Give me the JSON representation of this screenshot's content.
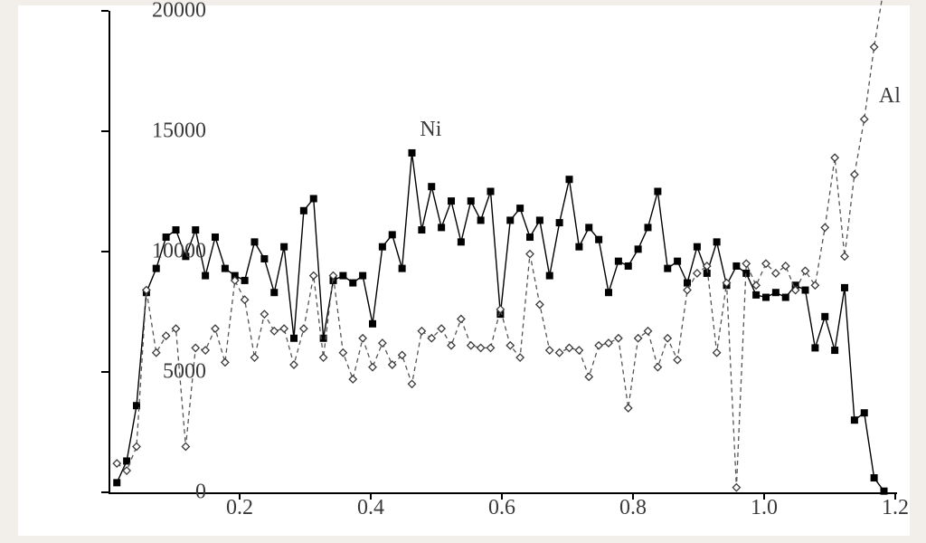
{
  "chart": {
    "type": "line",
    "background_color": "#ffffff",
    "page_background": "#f2eee9",
    "axis_color": "#000000",
    "label_color": "#3a3a3a",
    "label_fontsize": 24,
    "xlim": [
      0.0,
      1.2
    ],
    "ylim": [
      0,
      20000
    ],
    "xtick_step": 0.2,
    "ytick_step": 5000,
    "xticks": [
      "0.2",
      "0.4",
      "0.6",
      "0.8",
      "1.0",
      "1.2"
    ],
    "yticks": [
      "0",
      "5000",
      "10000",
      "15000",
      "20000"
    ],
    "x_values": [
      0.01,
      0.025,
      0.04,
      0.055,
      0.07,
      0.085,
      0.1,
      0.115,
      0.13,
      0.145,
      0.16,
      0.175,
      0.19,
      0.205,
      0.22,
      0.235,
      0.25,
      0.265,
      0.28,
      0.295,
      0.31,
      0.325,
      0.34,
      0.355,
      0.37,
      0.385,
      0.4,
      0.415,
      0.43,
      0.445,
      0.46,
      0.475,
      0.49,
      0.505,
      0.52,
      0.535,
      0.55,
      0.565,
      0.58,
      0.595,
      0.61,
      0.625,
      0.64,
      0.655,
      0.67,
      0.685,
      0.7,
      0.715,
      0.73,
      0.745,
      0.76,
      0.775,
      0.79,
      0.805,
      0.82,
      0.835,
      0.85,
      0.865,
      0.88,
      0.895,
      0.91,
      0.925,
      0.94,
      0.955,
      0.97,
      0.985,
      1.0,
      1.015,
      1.03,
      1.045,
      1.06,
      1.075,
      1.09,
      1.105,
      1.12,
      1.135,
      1.15,
      1.165,
      1.18
    ],
    "series": [
      {
        "name": "Ni",
        "label": "Ni",
        "line_color": "#000000",
        "line_style": "solid",
        "line_width": 1.4,
        "marker": "filled-square",
        "marker_size": 7,
        "marker_fill": "#000000",
        "marker_stroke": "#000000",
        "y": [
          400,
          1300,
          3600,
          8300,
          9300,
          10600,
          10900,
          9800,
          10900,
          9000,
          10600,
          9300,
          9000,
          8800,
          10400,
          9700,
          8300,
          10200,
          6400,
          11700,
          12200,
          6400,
          8800,
          9000,
          8700,
          9000,
          7000,
          10200,
          10700,
          9300,
          14100,
          10900,
          12700,
          11000,
          12100,
          10400,
          12100,
          11300,
          12500,
          7400,
          11300,
          11800,
          10600,
          11300,
          9000,
          11200,
          13000,
          10200,
          11000,
          10500,
          8300,
          9600,
          9400,
          10100,
          11000,
          12500,
          9300,
          9600,
          8700,
          10200,
          9100,
          10400,
          8600,
          9400,
          9100,
          8200,
          8100,
          8300,
          8100,
          8600,
          8400,
          6000,
          7300,
          5900,
          8500,
          3000,
          3300,
          600,
          50
        ]
      },
      {
        "name": "Al",
        "label": "Al",
        "line_color": "#555555",
        "line_style": "dashed",
        "line_width": 1.3,
        "marker": "open-diamond",
        "marker_size": 8,
        "marker_fill": "#ffffff",
        "marker_stroke": "#3a3a3a",
        "y": [
          1200,
          900,
          1900,
          8400,
          5800,
          6500,
          6800,
          1900,
          6000,
          5900,
          6800,
          5400,
          8800,
          8000,
          5600,
          7400,
          6700,
          6800,
          5300,
          6800,
          9000,
          5600,
          9000,
          5800,
          4700,
          6400,
          5200,
          6200,
          5300,
          5700,
          4500,
          6700,
          6400,
          6800,
          6100,
          7200,
          6100,
          6000,
          6000,
          7600,
          6100,
          5600,
          9900,
          7800,
          5900,
          5800,
          6000,
          5900,
          4800,
          6100,
          6200,
          6400,
          3500,
          6400,
          6700,
          5200,
          6400,
          5500,
          8400,
          9100,
          9400,
          5800,
          8700,
          200,
          9500,
          8600,
          9500,
          9100,
          9400,
          8400,
          9200,
          8600,
          11000,
          13900,
          9800,
          13200,
          15500,
          18500,
          21000
        ]
      }
    ],
    "legend": {
      "ni_pos_x": 0.475,
      "ni_pos_y": 15100,
      "al_pos_x": 1.175,
      "al_pos_y": 16500
    }
  }
}
